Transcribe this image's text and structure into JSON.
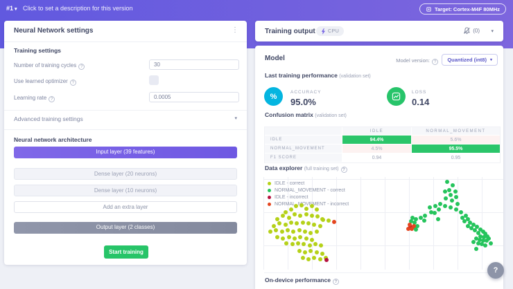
{
  "icons": {
    "caret_down": "▾",
    "kebab": "⋮",
    "percent": "%",
    "question": "?",
    "bolt": "⚡"
  },
  "topbar": {
    "version": "#1",
    "description": "Click to set a description for this version",
    "target_badge": "Target: Cortex-M4F 80MHz"
  },
  "left_panel": {
    "title": "Neural Network settings",
    "training_settings_heading": "Training settings",
    "fields": {
      "cycles": {
        "label": "Number of training cycles",
        "value": "30"
      },
      "optimizer": {
        "label": "Use learned optimizer",
        "checked": false
      },
      "learning_rate": {
        "label": "Learning rate",
        "value": "0.0005"
      }
    },
    "advanced_heading": "Advanced training settings",
    "architecture_heading": "Neural network architecture",
    "layers": {
      "input": "Input layer (39 features)",
      "dense1": "Dense layer (20 neurons)",
      "dense2": "Dense layer (10 neurons)",
      "add": "Add an extra layer",
      "output": "Output layer (2 classes)"
    },
    "start_button": "Start training"
  },
  "right_panel": {
    "title": "Training output",
    "cpu_badge": "CPU",
    "notifications_count": "(0)",
    "model_heading": "Model",
    "model_version_label": "Model version:",
    "model_version_value": "Quantized (int8)",
    "performance_heading": "Last training performance",
    "performance_subheading": "(validation set)",
    "accuracy_label": "ACCURACY",
    "accuracy_value": "95.0%",
    "loss_label": "LOSS",
    "loss_value": "0.14",
    "confusion_heading": "Confusion matrix",
    "confusion_subheading": "(validation set)",
    "data_explorer_heading": "Data explorer",
    "data_explorer_subheading": "(full training set)",
    "ondevice_heading": "On-device performance"
  },
  "confusion_matrix": {
    "columns": [
      "IDLE",
      "NORMAL_MOVEMENT"
    ],
    "rows": [
      {
        "label": "IDLE",
        "cells": [
          {
            "text": "94.4%"
          },
          {
            "text": "5.6%"
          }
        ]
      },
      {
        "label": "NORMAL_MOVEMENT",
        "cells": [
          {
            "text": "4.5%"
          },
          {
            "text": "95.5%"
          }
        ]
      },
      {
        "label": "F1 SCORE",
        "cells": [
          {
            "text": "0.94"
          },
          {
            "text": "0.95"
          }
        ]
      }
    ]
  },
  "chart_data": {
    "type": "scatter",
    "title": "Data explorer (full training set)",
    "xlabel": "",
    "ylabel": "",
    "axes_note": "2D embedding, no tick labels, light gridlines on",
    "plot_size": [
      346,
      134
    ],
    "legend": [
      {
        "label": "IDLE - correct",
        "color": "#b5d118"
      },
      {
        "label": "NORMAL_MOVEMENT - correct",
        "color": "#25c45c"
      },
      {
        "label": "IDLE - incorrect",
        "color": "#b5123f"
      },
      {
        "label": "NORMAL_MOVEMENT - incorrect",
        "color": "#e4451f"
      }
    ],
    "series": [
      {
        "name": "IDLE - correct",
        "color": "#b5d118",
        "points": [
          [
            32,
            51
          ],
          [
            40,
            47
          ],
          [
            47,
            42
          ],
          [
            55,
            41
          ],
          [
            62,
            46
          ],
          [
            70,
            42
          ],
          [
            77,
            47
          ],
          [
            20,
            61
          ],
          [
            28,
            56
          ],
          [
            37,
            59
          ],
          [
            45,
            54
          ],
          [
            53,
            56
          ],
          [
            62,
            54
          ],
          [
            70,
            56
          ],
          [
            78,
            57
          ],
          [
            85,
            61
          ],
          [
            15,
            71
          ],
          [
            23,
            67
          ],
          [
            32,
            69
          ],
          [
            40,
            66
          ],
          [
            48,
            67
          ],
          [
            57,
            66
          ],
          [
            65,
            67
          ],
          [
            73,
            69
          ],
          [
            82,
            71
          ],
          [
            10,
            79
          ],
          [
            18,
            77
          ],
          [
            27,
            79
          ],
          [
            35,
            77
          ],
          [
            43,
            79
          ],
          [
            52,
            77
          ],
          [
            60,
            79
          ],
          [
            68,
            81
          ],
          [
            77,
            79
          ],
          [
            20,
            87
          ],
          [
            28,
            89
          ],
          [
            37,
            87
          ],
          [
            45,
            89
          ],
          [
            53,
            87
          ],
          [
            62,
            89
          ],
          [
            70,
            91
          ],
          [
            33,
            96
          ],
          [
            42,
            97
          ],
          [
            50,
            96
          ],
          [
            58,
            97
          ],
          [
            67,
            99
          ],
          [
            75,
            97
          ],
          [
            83,
            99
          ],
          [
            52,
            107
          ],
          [
            60,
            109
          ],
          [
            68,
            107
          ],
          [
            77,
            109
          ],
          [
            85,
            111
          ],
          [
            57,
            117
          ],
          [
            65,
            119
          ],
          [
            73,
            117
          ],
          [
            82,
            119
          ],
          [
            90,
            117
          ],
          [
            86,
            62
          ],
          [
            94,
            63
          ]
        ]
      },
      {
        "name": "NORMAL_MOVEMENT - correct",
        "color": "#25c45c",
        "points": [
          [
            265,
            7
          ],
          [
            273,
            12
          ],
          [
            268,
            19
          ],
          [
            277,
            21
          ],
          [
            262,
            21
          ],
          [
            270,
            26
          ],
          [
            278,
            29
          ],
          [
            263,
            31
          ],
          [
            272,
            34
          ],
          [
            280,
            39
          ],
          [
            255,
            39
          ],
          [
            262,
            42
          ],
          [
            270,
            44
          ],
          [
            278,
            47
          ],
          [
            285,
            51
          ],
          [
            248,
            42
          ],
          [
            253,
            47
          ],
          [
            247,
            52
          ],
          [
            240,
            44
          ],
          [
            242,
            51
          ],
          [
            233,
            56
          ],
          [
            227,
            59
          ],
          [
            220,
            61
          ],
          [
            215,
            59
          ],
          [
            218,
            66
          ],
          [
            213,
            64
          ],
          [
            222,
            71
          ],
          [
            217,
            72
          ],
          [
            220,
            76
          ],
          [
            292,
            56
          ],
          [
            287,
            59
          ],
          [
            295,
            61
          ],
          [
            290,
            64
          ],
          [
            298,
            66
          ],
          [
            303,
            69
          ],
          [
            295,
            71
          ],
          [
            300,
            74
          ],
          [
            308,
            72
          ],
          [
            305,
            77
          ],
          [
            313,
            76
          ],
          [
            310,
            81
          ],
          [
            317,
            79
          ],
          [
            320,
            82
          ],
          [
            313,
            86
          ],
          [
            318,
            87
          ],
          [
            323,
            86
          ],
          [
            312,
            91
          ],
          [
            317,
            92
          ],
          [
            322,
            92
          ],
          [
            325,
            89
          ],
          [
            307,
            89
          ],
          [
            310,
            96
          ],
          [
            315,
            97
          ],
          [
            320,
            99
          ],
          [
            303,
            94
          ],
          [
            328,
            96
          ],
          [
            307,
            104
          ],
          [
            252,
            61
          ],
          [
            232,
            63
          ]
        ]
      },
      {
        "name": "IDLE - incorrect",
        "color": "#b5123f",
        "points": [
          [
            91,
            120
          ],
          [
            212,
            72
          ]
        ]
      },
      {
        "name": "NORMAL_MOVEMENT - incorrect",
        "color": "#e4451f",
        "points": [
          [
            102,
            65
          ],
          [
            211,
            69
          ],
          [
            209,
            75
          ],
          [
            214,
            75
          ],
          [
            217,
            71
          ]
        ]
      }
    ]
  }
}
